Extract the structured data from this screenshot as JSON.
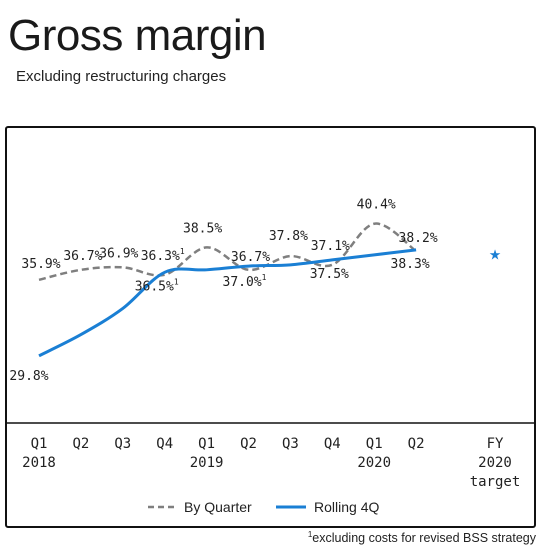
{
  "header": {
    "title": "Gross margin",
    "subtitle": "Excluding restructuring charges"
  },
  "footnote": {
    "mark": "1",
    "text": "excluding costs for revised BSS strategy"
  },
  "legend": {
    "by_quarter": "By Quarter",
    "rolling": "Rolling 4Q"
  },
  "colors": {
    "by_quarter": "#7f7f7f",
    "rolling": "#1a7fd4",
    "target": "#1a7fd4"
  },
  "chart_data": {
    "type": "line",
    "title": "Gross margin",
    "subtitle": "Excluding restructuring charges",
    "categories": [
      {
        "q": "Q1",
        "y": "2018"
      },
      {
        "q": "Q2",
        "y": ""
      },
      {
        "q": "Q3",
        "y": ""
      },
      {
        "q": "Q4",
        "y": ""
      },
      {
        "q": "Q1",
        "y": "2019"
      },
      {
        "q": "Q2",
        "y": ""
      },
      {
        "q": "Q3",
        "y": ""
      },
      {
        "q": "Q4",
        "y": ""
      },
      {
        "q": "Q1",
        "y": "2020"
      },
      {
        "q": "Q2",
        "y": ""
      }
    ],
    "target_category": [
      "FY",
      "2020",
      "target"
    ],
    "series": [
      {
        "name": "By Quarter",
        "style": "dashed",
        "values": [
          35.9,
          36.7,
          36.9,
          36.3,
          38.5,
          36.7,
          37.8,
          37.1,
          40.4,
          38.2
        ],
        "labels": [
          "35.9%",
          "36.7%",
          "36.9%",
          "36.3%",
          "38.5%",
          "36.7%",
          "37.8%",
          "37.1%",
          "40.4%",
          "38.2%"
        ],
        "label_marks": [
          "",
          "",
          "",
          "1",
          "",
          "",
          "",
          "",
          "",
          ""
        ]
      },
      {
        "name": "Rolling 4Q",
        "style": "solid",
        "values": [
          29.8,
          31.5,
          33.6,
          36.5,
          36.7,
          37.0,
          37.1,
          37.5,
          37.9,
          38.3
        ],
        "labels": [
          "29.8%",
          "",
          "",
          "36.5%",
          "",
          "37.0%",
          "",
          "37.5%",
          "",
          "38.3%"
        ],
        "label_marks": [
          "",
          "",
          "",
          "1",
          "",
          "1",
          "",
          "",
          "",
          ""
        ]
      }
    ],
    "target": {
      "value": 38.0,
      "marker": "★"
    },
    "ylim": [
      28.5,
      41.5
    ],
    "legend_position": "bottom",
    "grid": false
  }
}
